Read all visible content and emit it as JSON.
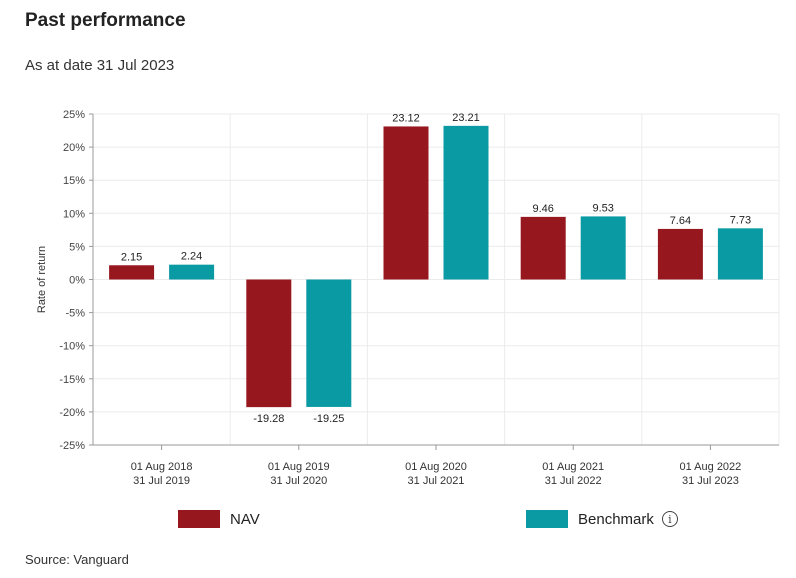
{
  "title": "Past performance",
  "subtitle": "As at date 31 Jul 2023",
  "source": "Source: Vanguard",
  "legend": {
    "nav_label": "NAV",
    "benchmark_label": "Benchmark",
    "info_icon": "info-circle-icon"
  },
  "colors": {
    "nav": "#97171e",
    "benchmark": "#0a9aa3",
    "grid": "#ebebeb",
    "axis": "#999999"
  },
  "chart_data": {
    "type": "bar",
    "categories": [
      [
        "01 Aug 2018",
        "31 Jul 2019"
      ],
      [
        "01 Aug 2019",
        "31 Jul 2020"
      ],
      [
        "01 Aug 2020",
        "31 Jul 2021"
      ],
      [
        "01 Aug 2021",
        "31 Jul 2022"
      ],
      [
        "01 Aug 2022",
        "31 Jul 2023"
      ]
    ],
    "series": [
      {
        "name": "NAV",
        "values": [
          2.15,
          -19.28,
          23.12,
          9.46,
          7.64
        ]
      },
      {
        "name": "Benchmark",
        "values": [
          2.24,
          -19.25,
          23.21,
          9.53,
          7.73
        ]
      }
    ],
    "ylabel": "Rate of return",
    "xlabel": "",
    "ylim": [
      -25,
      25
    ],
    "yticks": [
      25,
      20,
      15,
      10,
      5,
      0,
      -5,
      -10,
      -15,
      -20,
      -25
    ],
    "ytick_labels": [
      "25%",
      "20%",
      "15%",
      "10%",
      "5%",
      "0%",
      "-5%",
      "-10%",
      "-15%",
      "-20%",
      "-25%"
    ],
    "grid": true,
    "legend_position": "bottom"
  }
}
